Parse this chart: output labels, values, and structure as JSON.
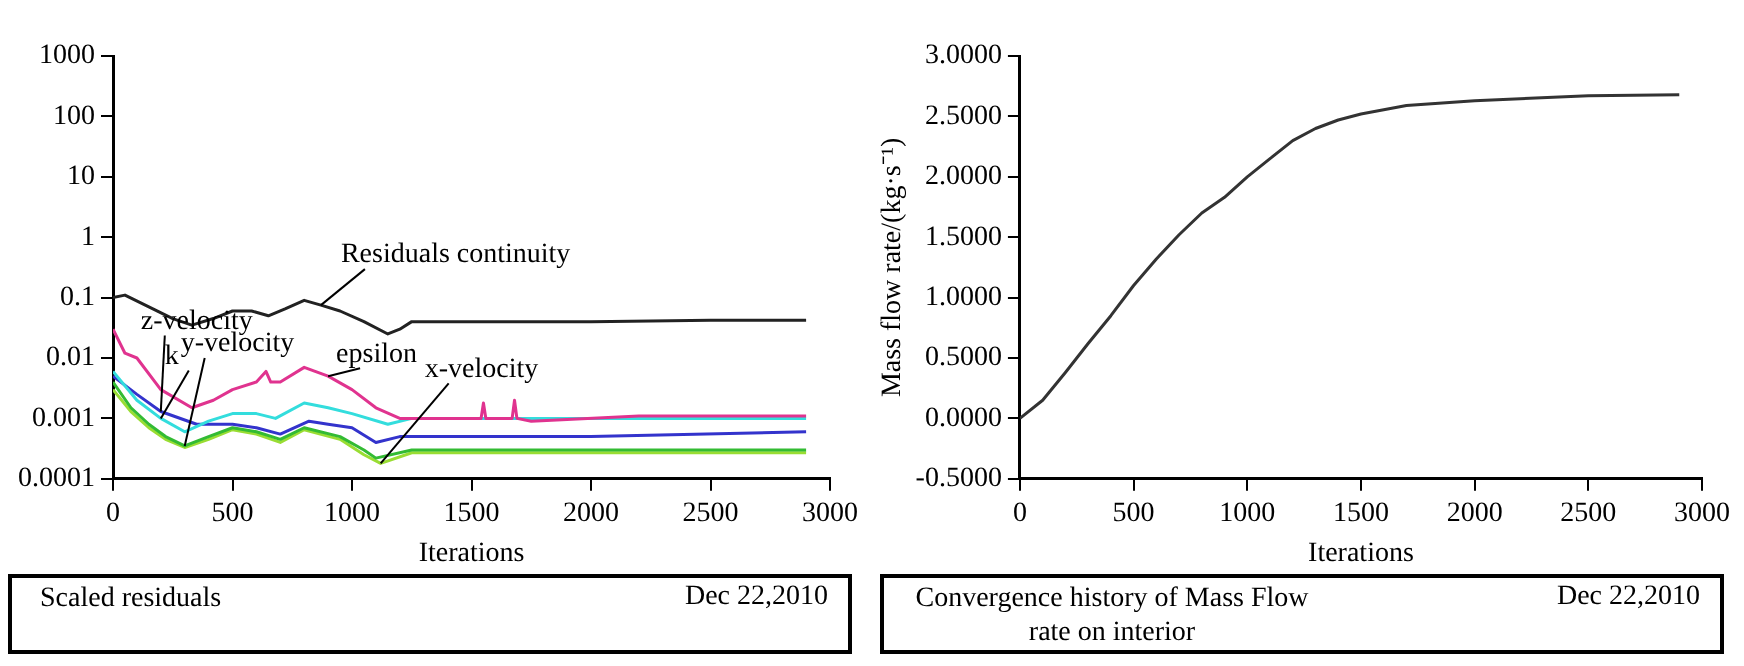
{
  "chart_data": [
    {
      "type": "line",
      "title": "Scaled residuals",
      "xlabel": "Iterations",
      "log": true,
      "grid": false,
      "legend": false,
      "marker": "none",
      "line_style": "solid",
      "xlim": [
        0,
        3000
      ],
      "xticks": [
        0,
        500,
        1000,
        1500,
        2000,
        2500,
        3000
      ],
      "ylim": [
        0.0001,
        1000
      ],
      "yticks": [
        0.0001,
        0.001,
        0.01,
        0.1,
        1,
        10,
        100,
        1000
      ],
      "annotations": [
        "Dec 22,2010"
      ],
      "series": [
        {
          "name": "Residuals continuity",
          "color": "#222222",
          "x": [
            0,
            50,
            150,
            250,
            330,
            420,
            500,
            580,
            650,
            720,
            800,
            870,
            950,
            1050,
            1150,
            1200,
            1250,
            1500,
            2000,
            2500,
            2900
          ],
          "values": [
            0.1,
            0.11,
            0.07,
            0.045,
            0.035,
            0.045,
            0.06,
            0.06,
            0.05,
            0.065,
            0.09,
            0.075,
            0.06,
            0.04,
            0.025,
            0.03,
            0.04,
            0.04,
            0.04,
            0.042,
            0.042
          ]
        },
        {
          "name": "epsilon",
          "color": "#e0338f",
          "x": [
            0,
            50,
            100,
            200,
            330,
            420,
            500,
            600,
            640,
            660,
            700,
            800,
            900,
            1000,
            1100,
            1200,
            1540,
            1550,
            1560,
            1670,
            1680,
            1690,
            1750,
            2200,
            2900
          ],
          "values": [
            0.03,
            0.012,
            0.01,
            0.003,
            0.0015,
            0.002,
            0.003,
            0.004,
            0.006,
            0.004,
            0.004,
            0.007,
            0.005,
            0.003,
            0.0015,
            0.001,
            0.001,
            0.0018,
            0.001,
            0.001,
            0.002,
            0.001,
            0.0009,
            0.0011,
            0.0011
          ]
        },
        {
          "name": "k",
          "color": "#33dddd",
          "x": [
            0,
            100,
            200,
            300,
            400,
            500,
            600,
            680,
            800,
            900,
            1000,
            1150,
            1250,
            1500,
            2000,
            2900
          ],
          "values": [
            0.006,
            0.002,
            0.001,
            0.0006,
            0.0009,
            0.0012,
            0.0012,
            0.001,
            0.0018,
            0.0015,
            0.0012,
            0.0008,
            0.001,
            0.001,
            0.001,
            0.001
          ]
        },
        {
          "name": "z-velocity",
          "color": "#3333cc",
          "x": [
            0,
            100,
            200,
            350,
            500,
            600,
            700,
            820,
            900,
            1000,
            1100,
            1200,
            1500,
            2000,
            2900
          ],
          "values": [
            0.005,
            0.0025,
            0.0013,
            0.0008,
            0.0008,
            0.0007,
            0.00055,
            0.0009,
            0.0008,
            0.0007,
            0.0004,
            0.0005,
            0.0005,
            0.0005,
            0.0006
          ]
        },
        {
          "name": "y-velocity",
          "color": "#33bb33",
          "x": [
            0,
            75,
            150,
            220,
            300,
            400,
            500,
            600,
            700,
            800,
            950,
            1050,
            1100,
            1250,
            1500,
            2000,
            2900
          ],
          "values": [
            0.004,
            0.0015,
            0.0008,
            0.0005,
            0.00035,
            0.0005,
            0.0007,
            0.0006,
            0.00045,
            0.0007,
            0.0005,
            0.0003,
            0.00022,
            0.0003,
            0.0003,
            0.0003,
            0.0003
          ]
        },
        {
          "name": "x-velocity",
          "color": "#99dd33",
          "x": [
            0,
            75,
            150,
            220,
            300,
            400,
            500,
            600,
            700,
            800,
            950,
            1050,
            1120,
            1250,
            1500,
            2000,
            2900
          ],
          "values": [
            0.003,
            0.0013,
            0.0007,
            0.00045,
            0.00033,
            0.00045,
            0.00065,
            0.00055,
            0.0004,
            0.00065,
            0.00045,
            0.00025,
            0.00018,
            0.00027,
            0.00027,
            0.00027,
            0.00027
          ]
        }
      ]
    },
    {
      "type": "line",
      "title": "Convergence history of Mass Flow rate on interior",
      "xlabel": "Iterations",
      "ylabel": "Mass flow rate/(kg·s⁻¹)",
      "grid": false,
      "legend": false,
      "marker": "none",
      "line_style": "solid",
      "xlim": [
        0,
        3000
      ],
      "xticks": [
        0,
        500,
        1000,
        1500,
        2000,
        2500,
        3000
      ],
      "ylim": [
        -0.5,
        3.0
      ],
      "yticks": [
        {
          "value": -0.5,
          "label": "-0.5000"
        },
        {
          "value": 0,
          "label": "0.0000"
        },
        {
          "value": 0.5,
          "label": "0.5000"
        },
        {
          "value": 1,
          "label": "1.0000"
        },
        {
          "value": 1.5,
          "label": "1.5000"
        },
        {
          "value": 2,
          "label": "2.0000"
        },
        {
          "value": 2.5,
          "label": "2.5000"
        },
        {
          "value": 3,
          "label": "3.0000"
        }
      ],
      "annotations": [
        "Dec 22,2010"
      ],
      "series": [
        {
          "color": "#333333",
          "x": [
            0,
            100,
            200,
            300,
            400,
            500,
            600,
            700,
            800,
            900,
            1000,
            1100,
            1200,
            1300,
            1400,
            1500,
            1700,
            2000,
            2500,
            2900
          ],
          "values": [
            0,
            0.15,
            0.38,
            0.62,
            0.85,
            1.1,
            1.32,
            1.52,
            1.7,
            1.83,
            2.0,
            2.15,
            2.3,
            2.4,
            2.47,
            2.52,
            2.59,
            2.63,
            2.67,
            2.68
          ]
        }
      ]
    }
  ]
}
